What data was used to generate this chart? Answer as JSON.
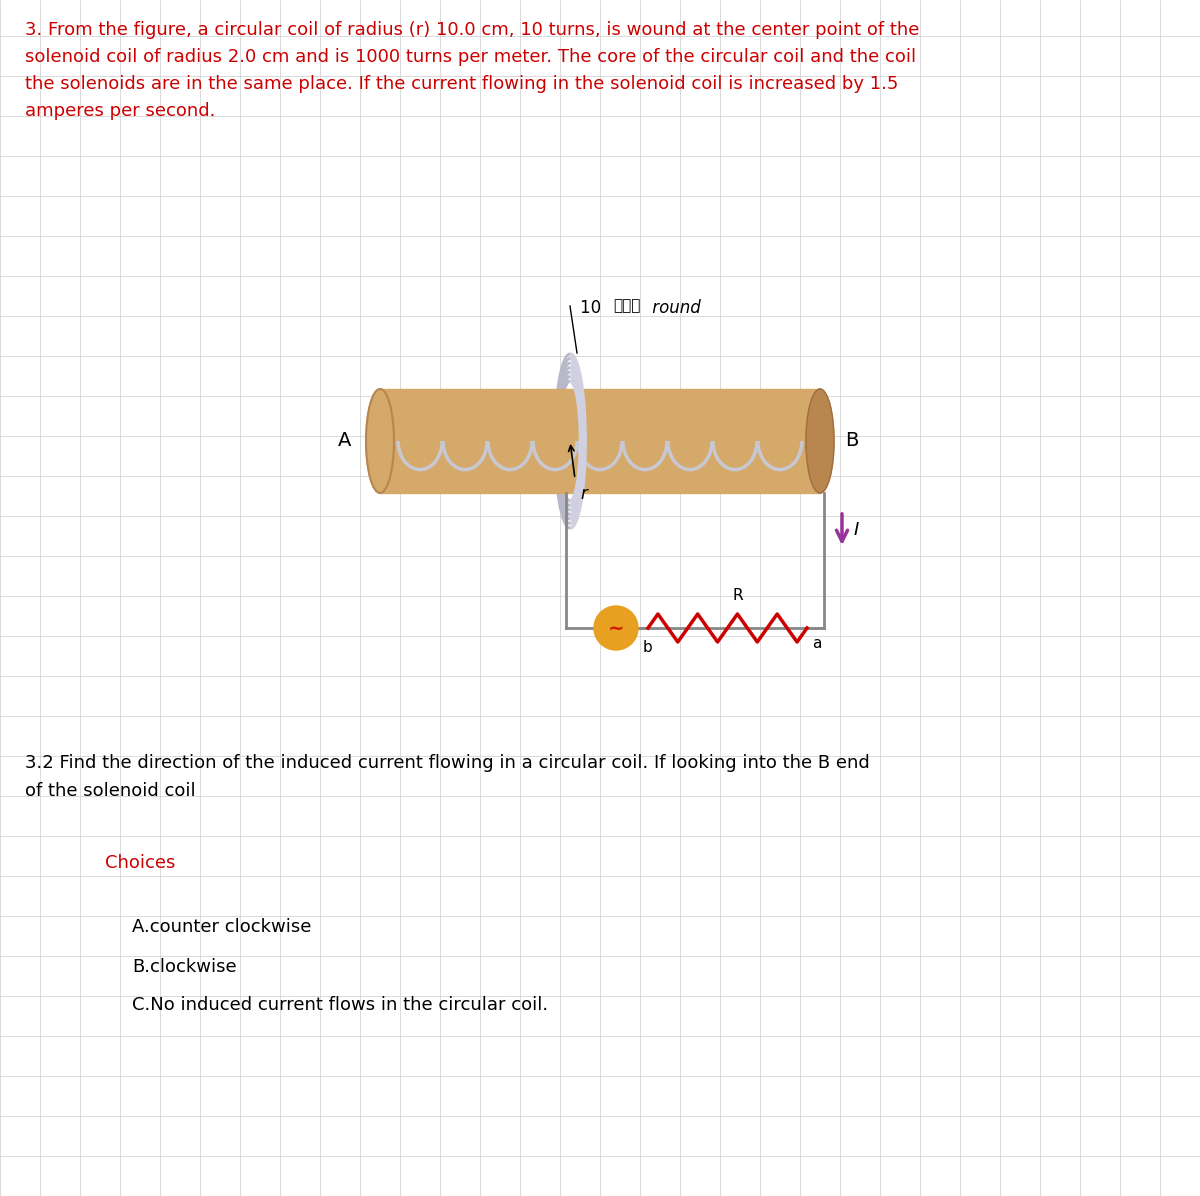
{
  "bg_color": "#ffffff",
  "grid_color": "#cccccc",
  "title_text": "3. From the figure, a circular coil of radius (r) 10.0 cm, 10 turns, is wound at the center point of the\nsolenoid coil of radius 2.0 cm and is 1000 turns per meter. The core of the circular coil and the coil\nthe solenoids are in the same place. If the current flowing in the solenoid coil is increased by 1.5\namperes per second.",
  "title_color": "#cc0000",
  "title_fontsize": 13.0,
  "question_text": "3.2 Find the direction of the induced current flowing in a circular coil. If looking into the B end\nof the solenoid coil",
  "question_fontsize": 13.0,
  "choices_label": "Choices",
  "choices_color": "#cc0000",
  "choices_fontsize": 13.0,
  "choice_A": "A.counter clockwise",
  "choice_B": "B.clockwise",
  "choice_C": "C.No induced current flows in the circular coil.",
  "choices_answer_fontsize": 13.0,
  "solenoid_color": "#d4a96a",
  "solenoid_dark": "#b8864e",
  "coil_color": "#c8c8d4",
  "coil_dark": "#a0a0b0",
  "circuit_color": "#888888",
  "source_color": "#e8a020",
  "resistor_color": "#cc0000",
  "current_arrow_color": "#993399"
}
